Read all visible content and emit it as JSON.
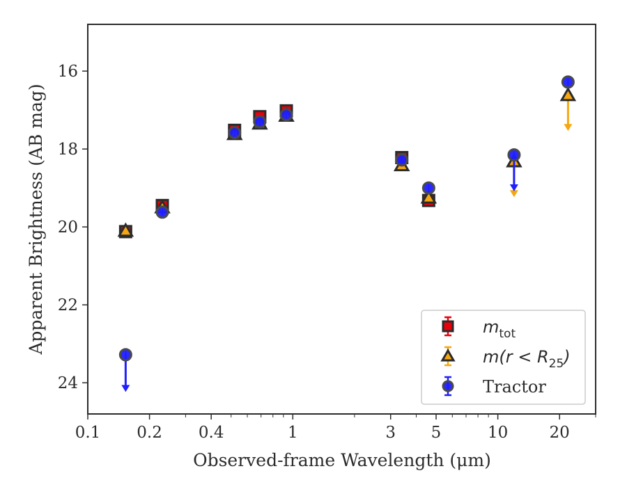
{
  "chart_data": {
    "type": "scatter",
    "xlabel": "Observed-frame Wavelength (μm)",
    "ylabel": "Apparent Brightness (AB mag)",
    "xscale": "log",
    "xlim": [
      0.1,
      30
    ],
    "ylim": [
      24.8,
      14.8
    ],
    "y_inverted": true,
    "x_tick_labels": [
      "0.1",
      "0.2",
      "0.4",
      "1",
      "3",
      "5",
      "10",
      "20"
    ],
    "x_tick_values": [
      0.1,
      0.2,
      0.4,
      1,
      3,
      5,
      10,
      20
    ],
    "y_ticks": [
      16,
      18,
      20,
      22,
      24
    ],
    "legend_placement": "lower-right",
    "series": [
      {
        "name": "m_tot",
        "marker": "square",
        "color": "#e8000b",
        "points": [
          {
            "x": 0.153,
            "y": 20.12
          },
          {
            "x": 0.231,
            "y": 19.45
          },
          {
            "x": 0.52,
            "y": 17.52
          },
          {
            "x": 0.69,
            "y": 17.17
          },
          {
            "x": 0.93,
            "y": 17.02
          },
          {
            "x": 3.4,
            "y": 18.22
          },
          {
            "x": 4.6,
            "y": 19.32
          }
        ]
      },
      {
        "name": "m(r < R25)",
        "marker": "triangle",
        "color": "#f5a712",
        "points": [
          {
            "x": 0.153,
            "y": 20.1
          },
          {
            "x": 0.231,
            "y": 19.5
          },
          {
            "x": 0.52,
            "y": 17.62
          },
          {
            "x": 0.69,
            "y": 17.35
          },
          {
            "x": 0.93,
            "y": 17.15
          },
          {
            "x": 3.4,
            "y": 18.42
          },
          {
            "x": 4.6,
            "y": 19.25
          },
          {
            "x": 12.0,
            "y": 18.32,
            "upper_limit_arrow_to": 19.2
          },
          {
            "x": 22.0,
            "y": 16.62,
            "upper_limit_arrow_to": 17.5
          }
        ]
      },
      {
        "name": "Tractor",
        "marker": "circle",
        "color": "#1f1fff",
        "points": [
          {
            "x": 0.153,
            "y": 23.28,
            "upper_limit_arrow_to": 24.2
          },
          {
            "x": 0.231,
            "y": 19.62
          },
          {
            "x": 0.52,
            "y": 17.58
          },
          {
            "x": 0.69,
            "y": 17.3
          },
          {
            "x": 0.93,
            "y": 17.12
          },
          {
            "x": 3.4,
            "y": 18.28
          },
          {
            "x": 4.6,
            "y": 19.0
          },
          {
            "x": 12.0,
            "y": 18.15,
            "upper_limit_arrow_to": 19.05
          },
          {
            "x": 22.0,
            "y": 16.28
          }
        ]
      }
    ],
    "legend": {
      "entries": [
        {
          "label_base": "m",
          "label_sub": "tot"
        },
        {
          "label_base": "m(r < R",
          "label_sub": "25",
          "label_tail": ")"
        },
        {
          "label_base": "Tractor",
          "label_sub": "",
          "label_tail": ""
        }
      ]
    }
  }
}
